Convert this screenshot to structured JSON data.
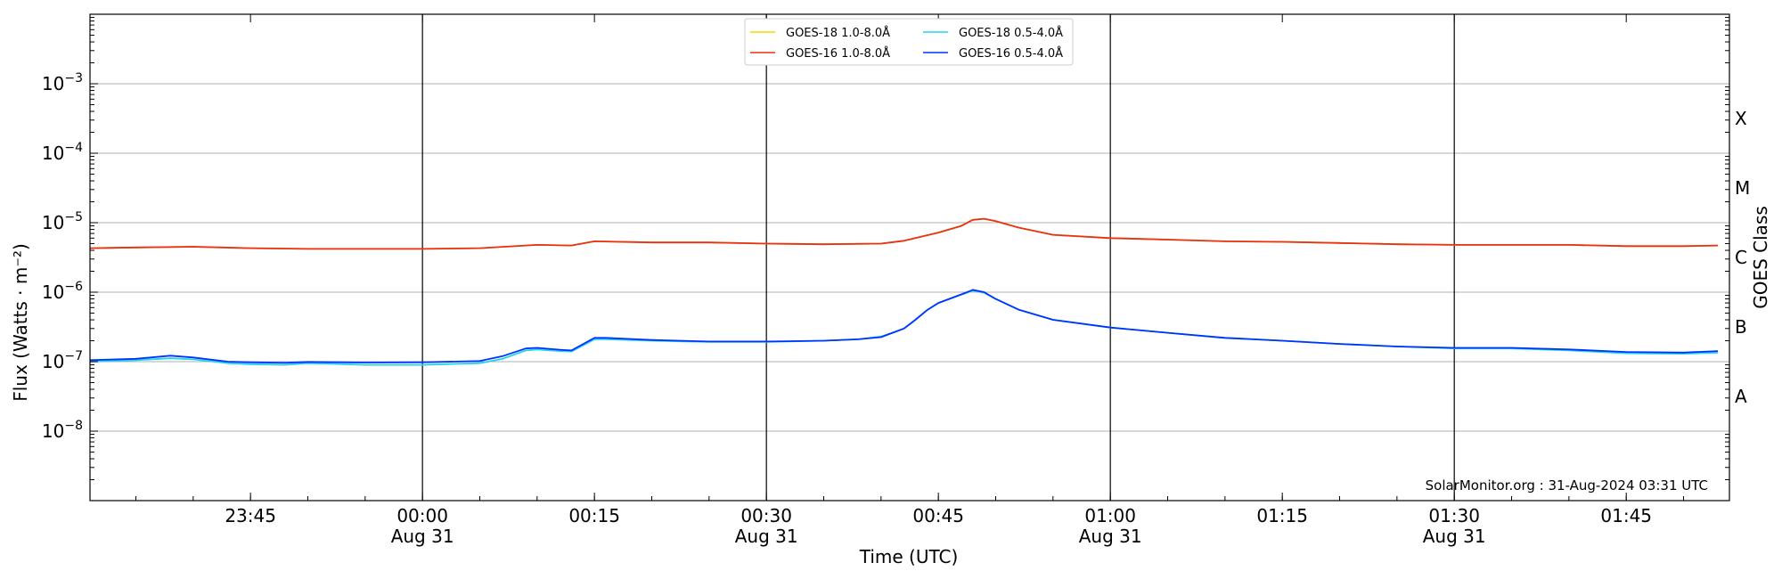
{
  "chart_data": {
    "type": "line",
    "y_scale": "log",
    "ylabel": "Flux (Watts · m⁻²)",
    "xlabel": "Time (UTC)",
    "right_label": "GOES Class",
    "credit": "SolarMonitor.org : 31-Aug-2024 03:31 UTC",
    "xlim": [
      "Aug 30 23:31",
      "Aug 31 01:54"
    ],
    "ylim": [
      1e-09,
      0.01
    ],
    "grid": "horizontal at decades",
    "legend_position": "top-center",
    "x_ticks": [
      {
        "time": "23:45",
        "date": ""
      },
      {
        "time": "00:00",
        "date": "Aug 31"
      },
      {
        "time": "00:15",
        "date": ""
      },
      {
        "time": "00:30",
        "date": "Aug 31"
      },
      {
        "time": "00:45",
        "date": ""
      },
      {
        "time": "01:00",
        "date": "Aug 31"
      },
      {
        "time": "01:15",
        "date": ""
      },
      {
        "time": "01:30",
        "date": "Aug 31"
      },
      {
        "time": "01:45",
        "date": ""
      }
    ],
    "y_ticks": [
      {
        "label": "10",
        "exp": "−3",
        "value": 0.001
      },
      {
        "label": "10",
        "exp": "−4",
        "value": 0.0001
      },
      {
        "label": "10",
        "exp": "−5",
        "value": 1e-05
      },
      {
        "label": "10",
        "exp": "−6",
        "value": 1e-06
      },
      {
        "label": "10",
        "exp": "−7",
        "value": 1e-07
      },
      {
        "label": "10",
        "exp": "−8",
        "value": 1e-08
      }
    ],
    "goes_classes": [
      {
        "label": "X",
        "value": 0.000316
      },
      {
        "label": "M",
        "value": 3.16e-05
      },
      {
        "label": "C",
        "value": 3.16e-06
      },
      {
        "label": "B",
        "value": 3.16e-07
      },
      {
        "label": "A",
        "value": 3.16e-08
      }
    ],
    "day_lines": [
      "00:00",
      "00:30",
      "01:00",
      "01:30"
    ],
    "series": [
      {
        "name": "GOES-18 1.0-8.0Å",
        "color": "#ffd000",
        "x": [
          "23:31",
          "23:35",
          "23:40",
          "23:45",
          "23:50",
          "23:55",
          "00:00",
          "00:05",
          "00:10",
          "00:13",
          "00:15",
          "00:20",
          "00:25",
          "00:30",
          "00:35",
          "00:40",
          "00:42",
          "00:45",
          "00:47",
          "00:48",
          "00:49",
          "00:50",
          "00:52",
          "00:55",
          "01:00",
          "01:05",
          "01:10",
          "01:15",
          "01:20",
          "01:25",
          "01:30",
          "01:35",
          "01:40",
          "01:45",
          "01:50",
          "01:53"
        ],
        "values": [
          4.3e-06,
          4.4e-06,
          4.5e-06,
          4.3e-06,
          4.2e-06,
          4.2e-06,
          4.2e-06,
          4.3e-06,
          4.8e-06,
          4.7e-06,
          5.4e-06,
          5.2e-06,
          5.2e-06,
          5e-06,
          4.9e-06,
          5e-06,
          5.5e-06,
          7.2e-06,
          9e-06,
          1.1e-05,
          1.14e-05,
          1.05e-05,
          8.5e-06,
          6.7e-06,
          6e-06,
          5.7e-06,
          5.4e-06,
          5.3e-06,
          5.1e-06,
          4.9e-06,
          4.8e-06,
          4.8e-06,
          4.8e-06,
          4.6e-06,
          4.6e-06,
          4.7e-06
        ]
      },
      {
        "name": "GOES-16 1.0-8.0Å",
        "color": "#e8311a",
        "x": [
          "23:31",
          "23:35",
          "23:40",
          "23:45",
          "23:50",
          "23:55",
          "00:00",
          "00:05",
          "00:10",
          "00:13",
          "00:15",
          "00:20",
          "00:25",
          "00:30",
          "00:35",
          "00:40",
          "00:42",
          "00:45",
          "00:47",
          "00:48",
          "00:49",
          "00:50",
          "00:52",
          "00:55",
          "01:00",
          "01:05",
          "01:10",
          "01:15",
          "01:20",
          "01:25",
          "01:30",
          "01:35",
          "01:40",
          "01:45",
          "01:50",
          "01:53"
        ],
        "values": [
          4.3e-06,
          4.4e-06,
          4.5e-06,
          4.3e-06,
          4.2e-06,
          4.2e-06,
          4.2e-06,
          4.3e-06,
          4.8e-06,
          4.7e-06,
          5.4e-06,
          5.2e-06,
          5.2e-06,
          5e-06,
          4.9e-06,
          5e-06,
          5.5e-06,
          7.2e-06,
          9e-06,
          1.1e-05,
          1.14e-05,
          1.05e-05,
          8.5e-06,
          6.7e-06,
          6e-06,
          5.7e-06,
          5.4e-06,
          5.3e-06,
          5.1e-06,
          4.9e-06,
          4.8e-06,
          4.8e-06,
          4.8e-06,
          4.6e-06,
          4.6e-06,
          4.7e-06
        ]
      },
      {
        "name": "GOES-18 0.5-4.0Å",
        "color": "#22d3ee",
        "x": [
          "23:31",
          "23:35",
          "23:38",
          "23:40",
          "23:43",
          "23:45",
          "23:48",
          "23:50",
          "23:55",
          "00:00",
          "00:05",
          "00:07",
          "00:09",
          "00:10",
          "00:12",
          "00:13",
          "00:15",
          "00:16",
          "00:20",
          "00:25",
          "00:30",
          "00:35",
          "00:38",
          "00:40",
          "00:41",
          "00:42",
          "00:43",
          "00:44",
          "00:45",
          "00:47",
          "00:48",
          "00:49",
          "00:50",
          "00:52",
          "00:55",
          "01:00",
          "01:05",
          "01:10",
          "01:15",
          "01:20",
          "01:25",
          "01:30",
          "01:35",
          "01:40",
          "01:45",
          "01:50",
          "01:53"
        ],
        "values": [
          1e-07,
          1.05e-07,
          1.12e-07,
          1.08e-07,
          9.5e-08,
          9.2e-08,
          9e-08,
          9.5e-08,
          9e-08,
          9e-08,
          9.5e-08,
          1.1e-07,
          1.45e-07,
          1.5e-07,
          1.42e-07,
          1.4e-07,
          2.1e-07,
          2.1e-07,
          2e-07,
          1.92e-07,
          1.92e-07,
          2e-07,
          2.1e-07,
          2.3e-07,
          2.6e-07,
          3e-07,
          4e-07,
          5.5e-07,
          7e-07,
          9.2e-07,
          1.05e-06,
          9.8e-07,
          8e-07,
          5.6e-07,
          4e-07,
          3.1e-07,
          2.6e-07,
          2.2e-07,
          2e-07,
          1.8e-07,
          1.65e-07,
          1.55e-07,
          1.55e-07,
          1.45e-07,
          1.32e-07,
          1.3e-07,
          1.35e-07
        ]
      },
      {
        "name": "GOES-16 0.5-4.0Å",
        "color": "#0033ff",
        "x": [
          "23:31",
          "23:35",
          "23:38",
          "23:40",
          "23:43",
          "23:45",
          "23:48",
          "23:50",
          "23:55",
          "00:00",
          "00:05",
          "00:07",
          "00:09",
          "00:10",
          "00:12",
          "00:13",
          "00:15",
          "00:16",
          "00:20",
          "00:25",
          "00:30",
          "00:35",
          "00:38",
          "00:40",
          "00:41",
          "00:42",
          "00:43",
          "00:44",
          "00:45",
          "00:47",
          "00:48",
          "00:49",
          "00:50",
          "00:52",
          "00:55",
          "01:00",
          "01:05",
          "01:10",
          "01:15",
          "01:20",
          "01:25",
          "01:30",
          "01:35",
          "01:40",
          "01:45",
          "01:50",
          "01:53"
        ],
        "values": [
          1.05e-07,
          1.1e-07,
          1.22e-07,
          1.15e-07,
          1e-07,
          9.8e-08,
          9.6e-08,
          9.9e-08,
          9.7e-08,
          9.8e-08,
          1.02e-07,
          1.2e-07,
          1.55e-07,
          1.58e-07,
          1.48e-07,
          1.45e-07,
          2.2e-07,
          2.2e-07,
          2.05e-07,
          1.95e-07,
          1.95e-07,
          2e-07,
          2.1e-07,
          2.25e-07,
          2.6e-07,
          3e-07,
          4e-07,
          5.5e-07,
          7e-07,
          9.3e-07,
          1.08e-06,
          1e-06,
          8e-07,
          5.6e-07,
          4e-07,
          3.1e-07,
          2.6e-07,
          2.2e-07,
          2e-07,
          1.8e-07,
          1.65e-07,
          1.58e-07,
          1.58e-07,
          1.5e-07,
          1.38e-07,
          1.35e-07,
          1.42e-07
        ]
      }
    ]
  }
}
